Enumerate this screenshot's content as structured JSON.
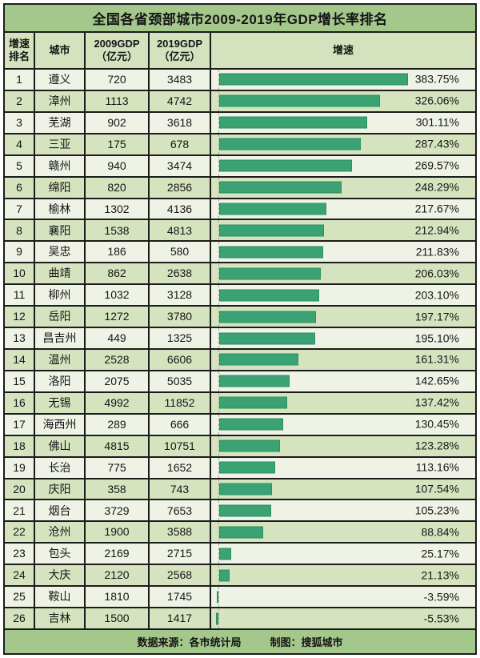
{
  "title": "全国各省颈部城市2009-2019年GDP增长率排名",
  "columns": {
    "rank": "增速\n排名",
    "city": "城市",
    "gdp2009": "2009GDP\n（亿元）",
    "gdp2019": "2019GDP\n（亿元）",
    "growth": "增速"
  },
  "rows": [
    {
      "rank": "1",
      "city": "遵义",
      "gdp2009": "720",
      "gdp2019": "3483",
      "growth_pct": 383.75,
      "growth_label": "383.75%"
    },
    {
      "rank": "2",
      "city": "漳州",
      "gdp2009": "1113",
      "gdp2019": "4742",
      "growth_pct": 326.06,
      "growth_label": "326.06%"
    },
    {
      "rank": "3",
      "city": "芜湖",
      "gdp2009": "902",
      "gdp2019": "3618",
      "growth_pct": 301.11,
      "growth_label": "301.11%"
    },
    {
      "rank": "4",
      "city": "三亚",
      "gdp2009": "175",
      "gdp2019": "678",
      "growth_pct": 287.43,
      "growth_label": "287.43%"
    },
    {
      "rank": "5",
      "city": "赣州",
      "gdp2009": "940",
      "gdp2019": "3474",
      "growth_pct": 269.57,
      "growth_label": "269.57%"
    },
    {
      "rank": "6",
      "city": "绵阳",
      "gdp2009": "820",
      "gdp2019": "2856",
      "growth_pct": 248.29,
      "growth_label": "248.29%"
    },
    {
      "rank": "7",
      "city": "榆林",
      "gdp2009": "1302",
      "gdp2019": "4136",
      "growth_pct": 217.67,
      "growth_label": "217.67%"
    },
    {
      "rank": "8",
      "city": "襄阳",
      "gdp2009": "1538",
      "gdp2019": "4813",
      "growth_pct": 212.94,
      "growth_label": "212.94%"
    },
    {
      "rank": "9",
      "city": "吴忠",
      "gdp2009": "186",
      "gdp2019": "580",
      "growth_pct": 211.83,
      "growth_label": "211.83%"
    },
    {
      "rank": "10",
      "city": "曲靖",
      "gdp2009": "862",
      "gdp2019": "2638",
      "growth_pct": 206.03,
      "growth_label": "206.03%"
    },
    {
      "rank": "11",
      "city": "柳州",
      "gdp2009": "1032",
      "gdp2019": "3128",
      "growth_pct": 203.1,
      "growth_label": "203.10%"
    },
    {
      "rank": "12",
      "city": "岳阳",
      "gdp2009": "1272",
      "gdp2019": "3780",
      "growth_pct": 197.17,
      "growth_label": "197.17%"
    },
    {
      "rank": "13",
      "city": "昌吉州",
      "gdp2009": "449",
      "gdp2019": "1325",
      "growth_pct": 195.1,
      "growth_label": "195.10%"
    },
    {
      "rank": "14",
      "city": "温州",
      "gdp2009": "2528",
      "gdp2019": "6606",
      "growth_pct": 161.31,
      "growth_label": "161.31%"
    },
    {
      "rank": "15",
      "city": "洛阳",
      "gdp2009": "2075",
      "gdp2019": "5035",
      "growth_pct": 142.65,
      "growth_label": "142.65%"
    },
    {
      "rank": "16",
      "city": "无锡",
      "gdp2009": "4992",
      "gdp2019": "11852",
      "growth_pct": 137.42,
      "growth_label": "137.42%"
    },
    {
      "rank": "17",
      "city": "海西州",
      "gdp2009": "289",
      "gdp2019": "666",
      "growth_pct": 130.45,
      "growth_label": "130.45%"
    },
    {
      "rank": "18",
      "city": "佛山",
      "gdp2009": "4815",
      "gdp2019": "10751",
      "growth_pct": 123.28,
      "growth_label": "123.28%"
    },
    {
      "rank": "19",
      "city": "长治",
      "gdp2009": "775",
      "gdp2019": "1652",
      "growth_pct": 113.16,
      "growth_label": "113.16%"
    },
    {
      "rank": "20",
      "city": "庆阳",
      "gdp2009": "358",
      "gdp2019": "743",
      "growth_pct": 107.54,
      "growth_label": "107.54%"
    },
    {
      "rank": "21",
      "city": "烟台",
      "gdp2009": "3729",
      "gdp2019": "7653",
      "growth_pct": 105.23,
      "growth_label": "105.23%"
    },
    {
      "rank": "22",
      "city": "沧州",
      "gdp2009": "1900",
      "gdp2019": "3588",
      "growth_pct": 88.84,
      "growth_label": "88.84%"
    },
    {
      "rank": "23",
      "city": "包头",
      "gdp2009": "2169",
      "gdp2019": "2715",
      "growth_pct": 25.17,
      "growth_label": "25.17%"
    },
    {
      "rank": "24",
      "city": "大庆",
      "gdp2009": "2120",
      "gdp2019": "2568",
      "growth_pct": 21.13,
      "growth_label": "21.13%"
    },
    {
      "rank": "25",
      "city": "鞍山",
      "gdp2009": "1810",
      "gdp2019": "1745",
      "growth_pct": -3.59,
      "growth_label": "-3.59%"
    },
    {
      "rank": "26",
      "city": "吉林",
      "gdp2009": "1500",
      "gdp2019": "1417",
      "growth_pct": -5.53,
      "growth_label": "-5.53%"
    }
  ],
  "footer": {
    "source": "数据来源：各市统计局",
    "credit": "制图：搜狐城市"
  },
  "colors": {
    "band_green": "#a4c88b",
    "header_green": "#d4e3bd",
    "row_light": "#eef3e6",
    "row_green": "#d5e4bf",
    "bar_fill": "#3aa273",
    "border": "#1c1c1c"
  },
  "chart_data": {
    "type": "bar",
    "orientation": "horizontal",
    "title": "全国各省颈部城市2009-2019年GDP增长率排名",
    "categories": [
      "遵义",
      "漳州",
      "芜湖",
      "三亚",
      "赣州",
      "绵阳",
      "榆林",
      "襄阳",
      "吴忠",
      "曲靖",
      "柳州",
      "岳阳",
      "昌吉州",
      "温州",
      "洛阳",
      "无锡",
      "海西州",
      "佛山",
      "长治",
      "庆阳",
      "烟台",
      "沧州",
      "包头",
      "大庆",
      "鞍山",
      "吉林"
    ],
    "series": [
      {
        "name": "2009GDP（亿元）",
        "values": [
          720,
          1113,
          902,
          175,
          940,
          820,
          1302,
          1538,
          186,
          862,
          1032,
          1272,
          449,
          2528,
          2075,
          4992,
          289,
          4815,
          775,
          358,
          3729,
          1900,
          2169,
          2120,
          1810,
          1500
        ]
      },
      {
        "name": "2019GDP（亿元）",
        "values": [
          3483,
          4742,
          3618,
          678,
          3474,
          2856,
          4136,
          4813,
          580,
          2638,
          3128,
          3780,
          1325,
          6606,
          5035,
          11852,
          666,
          10751,
          1652,
          743,
          7653,
          3588,
          2715,
          2568,
          1745,
          1417
        ]
      },
      {
        "name": "增速",
        "unit": "%",
        "values": [
          383.75,
          326.06,
          301.11,
          287.43,
          269.57,
          248.29,
          217.67,
          212.94,
          211.83,
          206.03,
          203.1,
          197.17,
          195.1,
          161.31,
          142.65,
          137.42,
          130.45,
          123.28,
          113.16,
          107.54,
          105.23,
          88.84,
          25.17,
          21.13,
          -3.59,
          -5.53
        ]
      }
    ],
    "xlabel": "增速",
    "ylabel": "城市",
    "xlim": [
      -20,
      400
    ],
    "grid": false,
    "legend_position": "none"
  }
}
